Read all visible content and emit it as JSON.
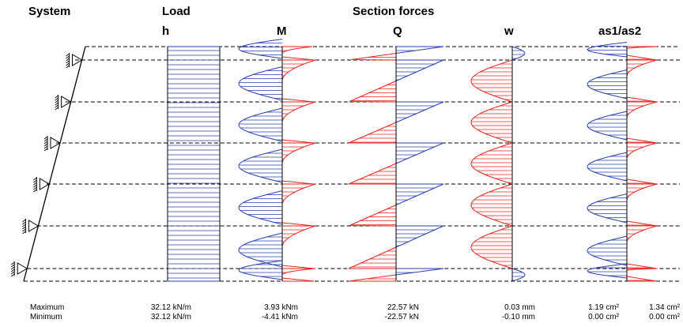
{
  "headers": {
    "system": "System",
    "load": "Load",
    "section_forces": "Section forces",
    "h": "h",
    "M": "M",
    "Q": "Q",
    "w": "w",
    "as": "as1/as2"
  },
  "summary": {
    "max_label": "Maximum",
    "min_label": "Minimum",
    "h_max": "32.12 kN/m",
    "h_min": "32.12 kN/m",
    "M_max": "3.93 kNm",
    "M_min": "-4.41 kNm",
    "Q_max": "22.57 kN",
    "Q_min": "-22.57 kN",
    "w_max": "0.03 mm",
    "w_min": "-0.10 mm",
    "as1_max": "1.19 cm²",
    "as1_min": "0.00 cm²",
    "as2_max": "1.34 cm²",
    "as2_min": "0.00 cm²"
  },
  "colors": {
    "positive": "#e8251f",
    "negative": "#2a3fb0",
    "axis": "#000000",
    "dashed": "#000000"
  },
  "supports_count": 6
}
